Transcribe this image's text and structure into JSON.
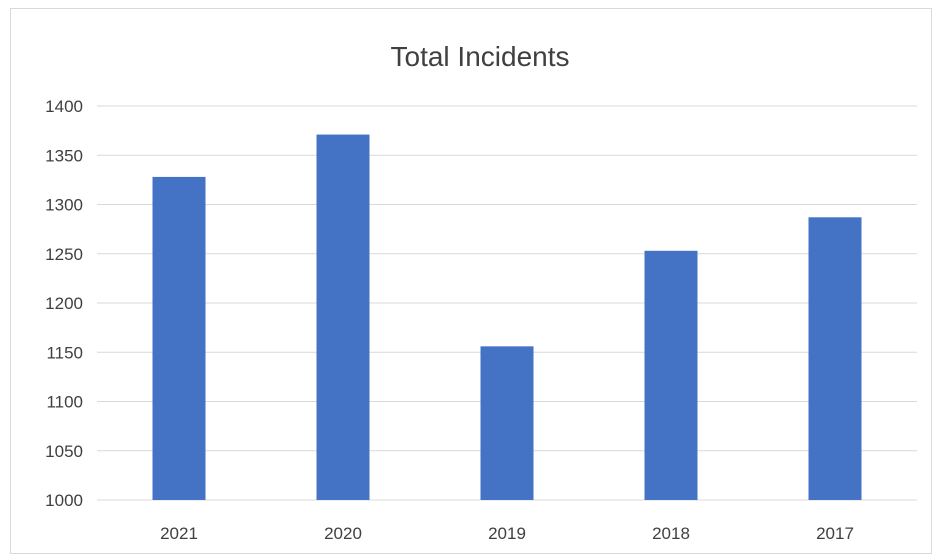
{
  "chart_data": {
    "type": "bar",
    "title": "Total Incidents",
    "xlabel": "",
    "ylabel": "",
    "categories": [
      "2021",
      "2020",
      "2019",
      "2018",
      "2017"
    ],
    "values": [
      1328,
      1371,
      1156,
      1253,
      1287
    ],
    "ylim": [
      1000,
      1400
    ],
    "yticks": [
      1000,
      1050,
      1100,
      1150,
      1200,
      1250,
      1300,
      1350,
      1400
    ],
    "grid": true,
    "legend": "none",
    "bar_color": "#4472c4",
    "grid_color": "#d9d9d9"
  }
}
